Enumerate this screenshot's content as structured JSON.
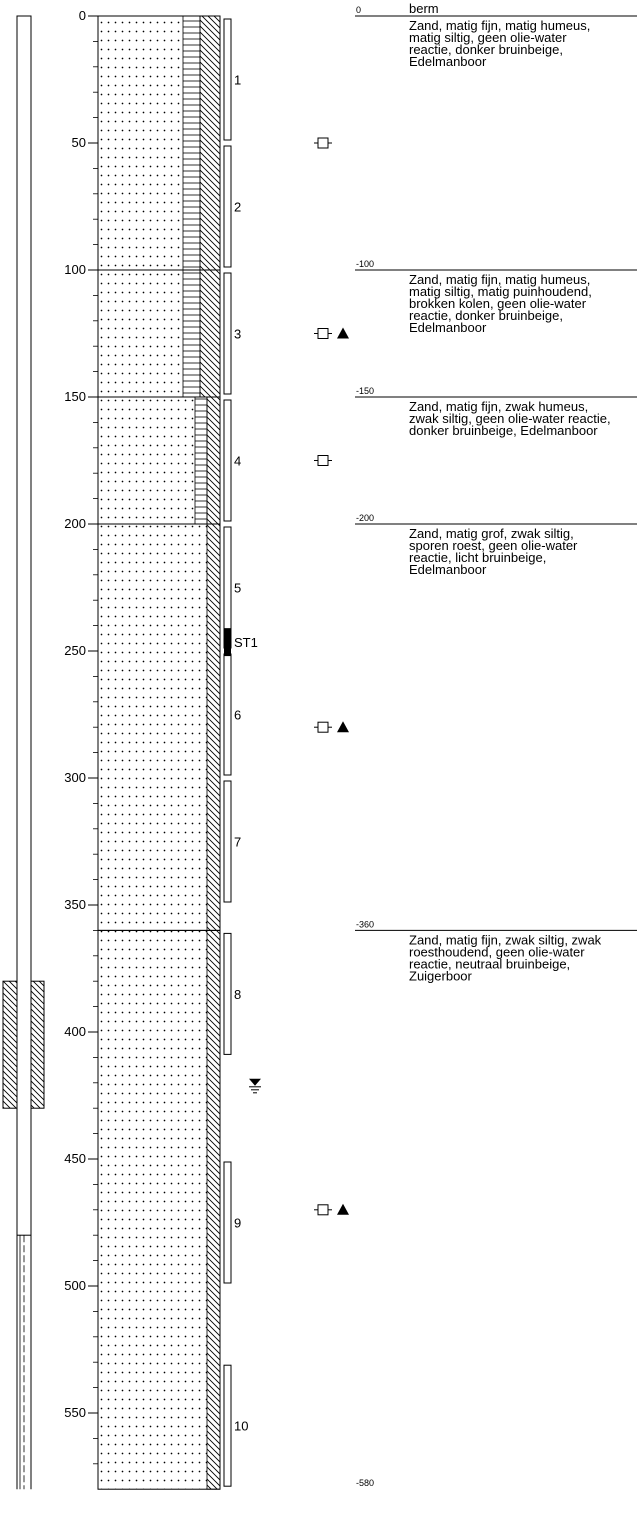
{
  "depth_axis": {
    "ticks": [
      0,
      50,
      100,
      150,
      200,
      250,
      300,
      350,
      400,
      450,
      500,
      550
    ],
    "range": [
      0,
      580
    ]
  },
  "layers": [
    {
      "top": 0,
      "bottom": 100,
      "top_label": "0",
      "title": "berm",
      "lines": [
        "Zand, matig fijn, matig humeus,",
        "matig siltig, geen olie-water",
        "reactie, donker bruinbeige,",
        "Edelmanboor"
      ]
    },
    {
      "top": 100,
      "bottom": 150,
      "top_label": "-100",
      "title": "",
      "lines": [
        "Zand, matig fijn, matig humeus,",
        "matig siltig, matig puinhoudend,",
        "brokken kolen, geen olie-water",
        "reactie, donker bruinbeige,",
        "Edelmanboor"
      ]
    },
    {
      "top": 150,
      "bottom": 200,
      "top_label": "-150",
      "title": "",
      "lines": [
        "Zand, matig fijn, zwak humeus,",
        "zwak siltig, geen olie-water reactie,",
        "donker bruinbeige, Edelmanboor"
      ]
    },
    {
      "top": 200,
      "bottom": 360,
      "top_label": "-200",
      "title": "",
      "lines": [
        "Zand, matig grof, zwak siltig,",
        "sporen roest, geen olie-water",
        "reactie, licht bruinbeige,",
        "Edelmanboor"
      ]
    },
    {
      "top": 360,
      "bottom": 580,
      "top_label": "-360",
      "title": "",
      "lines": [
        "Zand, matig fijn, zwak siltig, zwak",
        "roesthoudend, geen olie-water",
        "reactie, neutraal bruinbeige,",
        "Zuigerboor"
      ]
    }
  ],
  "end_label": "-580",
  "samples": [
    {
      "label": "1",
      "top": 0,
      "bottom": 50
    },
    {
      "label": "2",
      "top": 50,
      "bottom": 100
    },
    {
      "label": "3",
      "top": 100,
      "bottom": 150
    },
    {
      "label": "4",
      "top": 150,
      "bottom": 200
    },
    {
      "label": "5",
      "top": 200,
      "bottom": 250
    },
    {
      "label": "6",
      "top": 250,
      "bottom": 300
    },
    {
      "label": "7",
      "top": 300,
      "bottom": 350
    },
    {
      "label": "8",
      "top": 360,
      "bottom": 410
    },
    {
      "label": "9",
      "top": 450,
      "bottom": 500
    },
    {
      "label": "10",
      "top": 530,
      "bottom": 580
    }
  ],
  "special_sample": {
    "label": "ST1",
    "top": 241,
    "bottom": 252
  },
  "markers": [
    {
      "depth": 50,
      "triangle": false
    },
    {
      "depth": 125,
      "triangle": true
    },
    {
      "depth": 175,
      "triangle": false
    },
    {
      "depth": 280,
      "triangle": true
    },
    {
      "depth": 470,
      "triangle": true
    }
  ],
  "groundwater_depth": 420,
  "well": {
    "filter_top": 380,
    "filter_bottom": 430,
    "screen_top": 480
  }
}
